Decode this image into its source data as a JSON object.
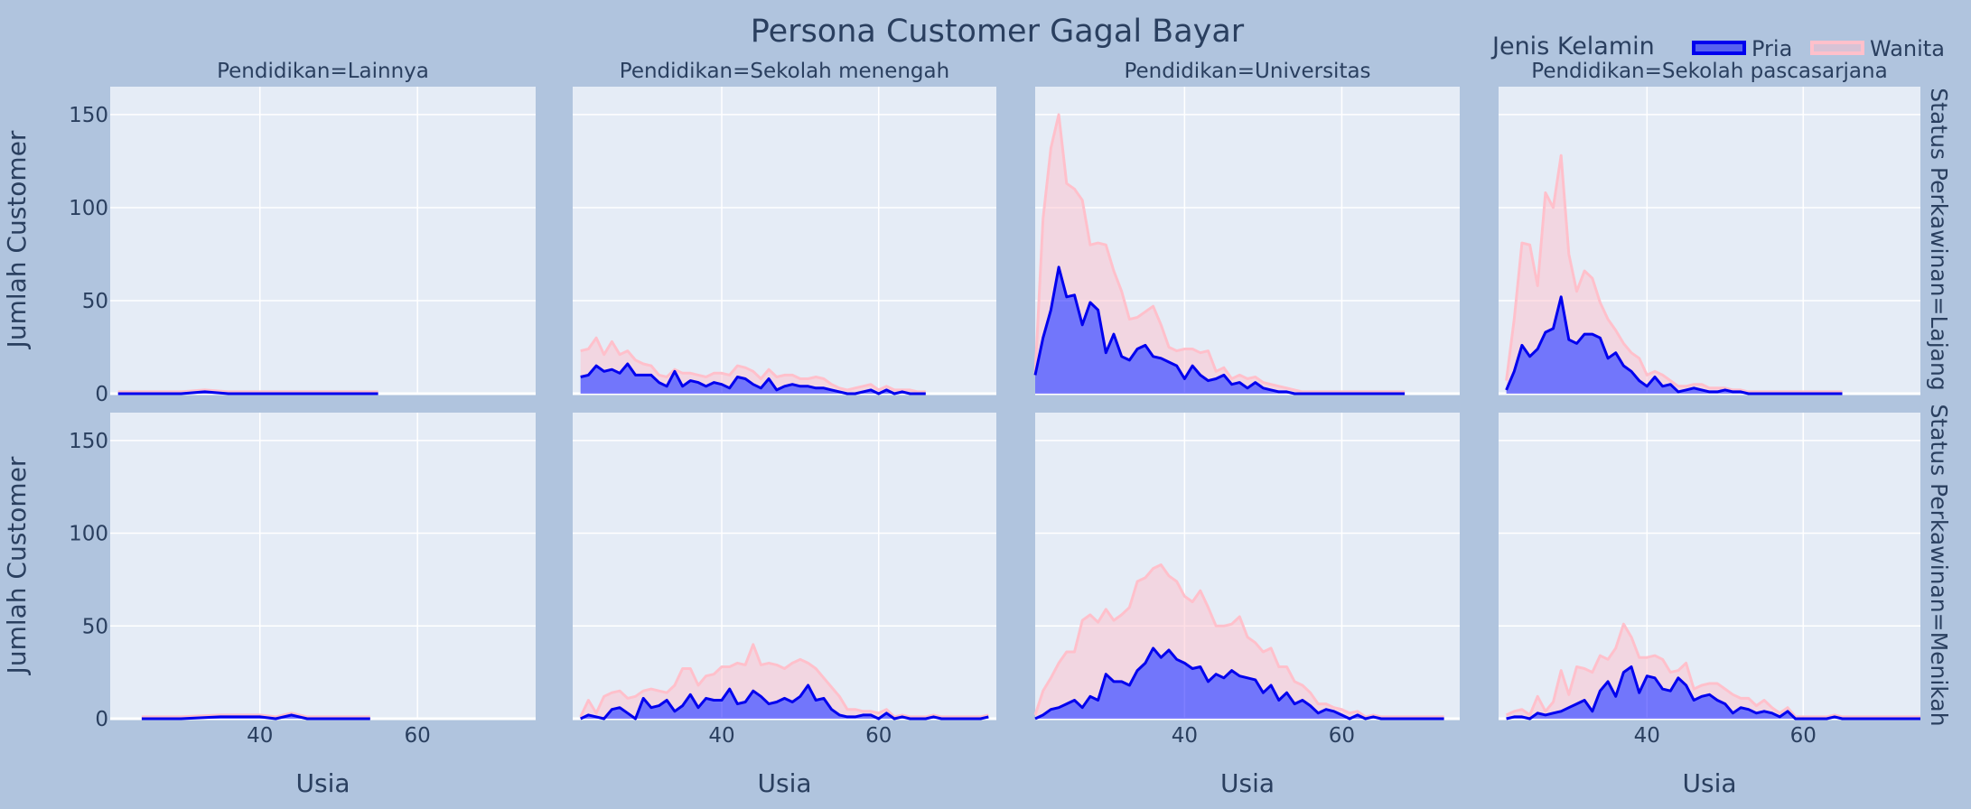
{
  "title": "Persona Customer Gagal Bayar",
  "legend_title": "Jenis Kelamin",
  "chart_data": {
    "type": "area",
    "stacked": true,
    "xlabel": "Usia",
    "ylabel": "Jumlah Customer",
    "xlim": [
      21,
      75
    ],
    "ylim": [
      0,
      165
    ],
    "xticks": [
      40,
      60
    ],
    "yticks": [
      0,
      50,
      100,
      150
    ],
    "grid": true,
    "legend_position": "top-right",
    "col_labels": [
      "Pendidikan=Lainnya",
      "Pendidikan=Sekolah menengah",
      "Pendidikan=Universitas",
      "Pendidikan=Sekolah pascasarjana"
    ],
    "row_labels": [
      "Status Perkawinan=Lajang",
      "Status Perkawinan=Menikah"
    ],
    "series_meta": [
      {
        "name": "Pria",
        "line_color": "#0000ee",
        "fill_color": "rgba(0,0,255,0.5)"
      },
      {
        "name": "Wanita",
        "line_color": "#ffc0cb",
        "fill_color": "rgba(255,192,203,0.5)"
      }
    ],
    "panels": [
      {
        "row": 0,
        "col": 0,
        "x": [
          22,
          30,
          33,
          36,
          40,
          45,
          50,
          55
        ],
        "pria": [
          0,
          0,
          1,
          0,
          0,
          0,
          0,
          0
        ],
        "wanita": [
          1,
          1,
          1,
          1,
          1,
          1,
          1,
          1
        ]
      },
      {
        "row": 0,
        "col": 1,
        "x": [
          22,
          23,
          24,
          25,
          26,
          27,
          28,
          29,
          30,
          31,
          32,
          33,
          34,
          35,
          36,
          37,
          38,
          39,
          40,
          41,
          42,
          43,
          44,
          45,
          46,
          47,
          48,
          49,
          50,
          51,
          52,
          53,
          54,
          55,
          56,
          57,
          58,
          59,
          60,
          61,
          62,
          63,
          64,
          65,
          66
        ],
        "pria": [
          9,
          10,
          15,
          12,
          13,
          11,
          16,
          10,
          10,
          10,
          6,
          4,
          12,
          4,
          7,
          6,
          4,
          6,
          5,
          3,
          9,
          8,
          5,
          3,
          8,
          2,
          4,
          5,
          4,
          4,
          3,
          3,
          2,
          1,
          0,
          0,
          1,
          2,
          0,
          2,
          0,
          1,
          0,
          0,
          0
        ],
        "wanita": [
          14,
          14,
          15,
          9,
          15,
          10,
          7,
          8,
          6,
          5,
          4,
          5,
          1,
          7,
          4,
          4,
          5,
          5,
          6,
          7,
          6,
          6,
          7,
          5,
          5,
          7,
          6,
          5,
          4,
          4,
          6,
          5,
          3,
          2,
          2,
          3,
          3,
          3,
          2,
          2,
          2,
          1,
          2,
          1,
          1
        ]
      },
      {
        "row": 0,
        "col": 2,
        "x": [
          21,
          22,
          23,
          24,
          25,
          26,
          27,
          28,
          29,
          30,
          31,
          32,
          33,
          34,
          35,
          36,
          37,
          38,
          39,
          40,
          41,
          42,
          43,
          44,
          45,
          46,
          47,
          48,
          49,
          50,
          51,
          52,
          53,
          54,
          55,
          56,
          57,
          58,
          59,
          60,
          61,
          62,
          63,
          64,
          65,
          66,
          67,
          68
        ],
        "pria": [
          10,
          30,
          45,
          68,
          52,
          53,
          37,
          49,
          45,
          22,
          32,
          20,
          18,
          24,
          26,
          20,
          19,
          17,
          15,
          8,
          15,
          10,
          7,
          8,
          10,
          5,
          6,
          3,
          6,
          3,
          2,
          1,
          1,
          0,
          0,
          0,
          0,
          0,
          0,
          0,
          0,
          0,
          0,
          0,
          0,
          0,
          0,
          0
        ],
        "wanita": [
          0,
          64,
          87,
          82,
          61,
          57,
          67,
          31,
          36,
          58,
          34,
          35,
          22,
          17,
          18,
          27,
          18,
          8,
          8,
          16,
          9,
          12,
          16,
          4,
          4,
          3,
          4,
          5,
          3,
          3,
          3,
          3,
          2,
          2,
          1,
          1,
          1,
          1,
          1,
          1,
          1,
          1,
          1,
          1,
          1,
          1,
          1,
          1
        ]
      },
      {
        "row": 0,
        "col": 3,
        "x": [
          22,
          23,
          24,
          25,
          26,
          27,
          28,
          29,
          30,
          31,
          32,
          33,
          34,
          35,
          36,
          37,
          38,
          39,
          40,
          41,
          42,
          43,
          44,
          45,
          46,
          47,
          48,
          49,
          50,
          51,
          52,
          53,
          54,
          55,
          56,
          57,
          58,
          59,
          60,
          61,
          62,
          63,
          64,
          65
        ],
        "pria": [
          2,
          12,
          26,
          20,
          24,
          33,
          35,
          52,
          29,
          27,
          32,
          32,
          30,
          19,
          22,
          15,
          12,
          7,
          4,
          9,
          4,
          5,
          1,
          2,
          3,
          2,
          1,
          1,
          2,
          1,
          1,
          0,
          0,
          0,
          0,
          0,
          0,
          0,
          0,
          0,
          0,
          0,
          0,
          0
        ],
        "wanita": [
          5,
          28,
          55,
          60,
          34,
          75,
          65,
          76,
          46,
          28,
          34,
          30,
          19,
          21,
          12,
          12,
          10,
          12,
          6,
          3,
          6,
          2,
          3,
          2,
          2,
          3,
          2,
          2,
          1,
          1,
          1,
          1,
          1,
          1,
          1,
          1,
          1,
          1,
          1,
          1,
          1,
          1,
          1,
          1
        ]
      },
      {
        "row": 1,
        "col": 0,
        "x": [
          25,
          30,
          35,
          37,
          40,
          42,
          44,
          46,
          50,
          54
        ],
        "pria": [
          0,
          0,
          1,
          1,
          1,
          0,
          2,
          0,
          0,
          0
        ],
        "wanita": [
          1,
          1,
          1,
          1,
          1,
          1,
          1,
          1,
          1,
          1
        ]
      },
      {
        "row": 1,
        "col": 1,
        "x": [
          22,
          23,
          24,
          25,
          26,
          27,
          28,
          29,
          30,
          31,
          32,
          33,
          34,
          35,
          36,
          37,
          38,
          39,
          40,
          41,
          42,
          43,
          44,
          45,
          46,
          47,
          48,
          49,
          50,
          51,
          52,
          53,
          54,
          55,
          56,
          57,
          58,
          59,
          60,
          61,
          62,
          63,
          64,
          65,
          66,
          67,
          68,
          69,
          70,
          71,
          72,
          73,
          74
        ],
        "pria": [
          0,
          2,
          1,
          0,
          5,
          6,
          3,
          0,
          11,
          6,
          7,
          10,
          4,
          7,
          13,
          6,
          11,
          10,
          10,
          16,
          8,
          9,
          15,
          12,
          8,
          9,
          11,
          9,
          12,
          18,
          10,
          11,
          5,
          2,
          1,
          1,
          2,
          2,
          0,
          3,
          0,
          1,
          0,
          0,
          0,
          1,
          0,
          0,
          0,
          0,
          0,
          0,
          1
        ],
        "wanita": [
          1,
          8,
          2,
          12,
          9,
          9,
          8,
          12,
          4,
          10,
          8,
          4,
          14,
          20,
          14,
          12,
          12,
          14,
          18,
          12,
          22,
          20,
          25,
          17,
          22,
          20,
          16,
          21,
          20,
          12,
          17,
          11,
          12,
          10,
          4,
          4,
          2,
          2,
          3,
          2,
          1,
          1,
          1,
          1,
          1,
          1,
          1,
          1,
          1,
          1,
          1,
          1,
          1
        ]
      },
      {
        "row": 1,
        "col": 2,
        "x": [
          21,
          22,
          23,
          24,
          25,
          26,
          27,
          28,
          29,
          30,
          31,
          32,
          33,
          34,
          35,
          36,
          37,
          38,
          39,
          40,
          41,
          42,
          43,
          44,
          45,
          46,
          47,
          48,
          49,
          50,
          51,
          52,
          53,
          54,
          55,
          56,
          57,
          58,
          59,
          60,
          61,
          62,
          63,
          64,
          65,
          66,
          67,
          68,
          69,
          70,
          71,
          72,
          73
        ],
        "pria": [
          0,
          2,
          5,
          6,
          8,
          10,
          6,
          12,
          10,
          24,
          20,
          20,
          18,
          26,
          30,
          38,
          33,
          37,
          32,
          30,
          27,
          28,
          20,
          24,
          22,
          26,
          23,
          22,
          21,
          14,
          18,
          10,
          14,
          8,
          10,
          7,
          3,
          5,
          4,
          2,
          0,
          2,
          0,
          1,
          0,
          0,
          0,
          0,
          0,
          0,
          0,
          0,
          0
        ],
        "wanita": [
          2,
          13,
          17,
          24,
          28,
          26,
          47,
          44,
          42,
          35,
          33,
          36,
          42,
          48,
          46,
          43,
          50,
          40,
          42,
          36,
          36,
          41,
          40,
          26,
          28,
          25,
          32,
          22,
          20,
          22,
          20,
          18,
          14,
          12,
          8,
          7,
          5,
          3,
          2,
          3,
          3,
          2,
          1,
          1,
          1,
          1,
          1,
          1,
          1,
          1,
          1,
          1,
          1
        ]
      },
      {
        "row": 1,
        "col": 3,
        "x": [
          22,
          23,
          24,
          25,
          26,
          27,
          28,
          29,
          30,
          31,
          32,
          33,
          34,
          35,
          36,
          37,
          38,
          39,
          40,
          41,
          42,
          43,
          44,
          45,
          46,
          47,
          48,
          49,
          50,
          51,
          52,
          53,
          54,
          55,
          56,
          57,
          58,
          59,
          60,
          61,
          62,
          63,
          64,
          65,
          66,
          67,
          68,
          69,
          70,
          71,
          72,
          73,
          74,
          75
        ],
        "pria": [
          0,
          1,
          1,
          0,
          3,
          2,
          3,
          4,
          6,
          8,
          10,
          4,
          15,
          20,
          12,
          25,
          28,
          14,
          23,
          22,
          16,
          15,
          22,
          18,
          10,
          12,
          13,
          10,
          8,
          3,
          6,
          5,
          3,
          4,
          3,
          1,
          4,
          0,
          0,
          0,
          0,
          0,
          1,
          0,
          0,
          0,
          0,
          0,
          0,
          0,
          0,
          0,
          0,
          0
        ],
        "wanita": [
          2,
          3,
          4,
          2,
          9,
          2,
          6,
          22,
          7,
          20,
          17,
          21,
          19,
          12,
          26,
          26,
          16,
          19,
          10,
          12,
          16,
          10,
          4,
          12,
          6,
          6,
          6,
          9,
          8,
          10,
          5,
          6,
          4,
          6,
          3,
          2,
          2,
          1,
          1,
          1,
          1,
          1,
          1,
          1,
          1,
          1,
          1,
          1,
          1,
          1,
          1,
          1,
          1,
          1
        ]
      }
    ]
  }
}
